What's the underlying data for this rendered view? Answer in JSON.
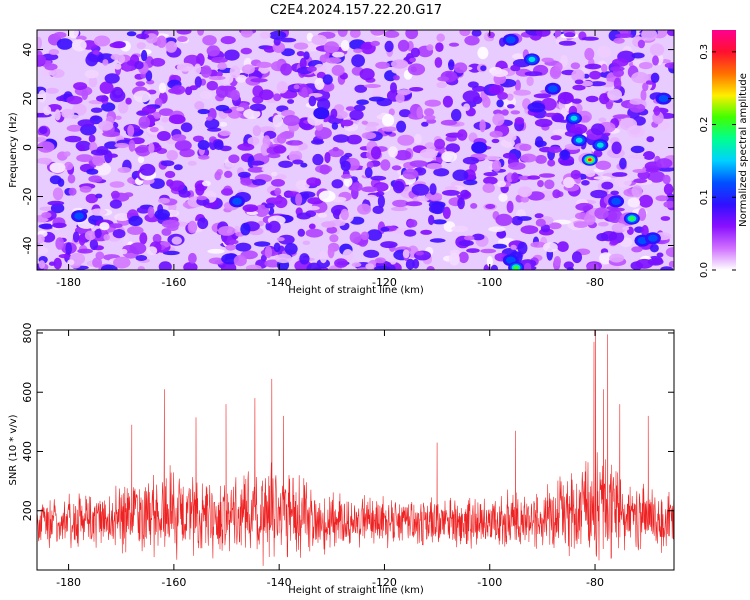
{
  "title": "C2E4.2024.157.22.20.G17",
  "chart_data": [
    {
      "type": "heatmap",
      "xlabel": "Height of straight line (km)",
      "ylabel": "Frequency (Hz)",
      "colorbar_label": "Normalized spectral amplitude",
      "xlim": [
        -186,
        -65
      ],
      "ylim": [
        -50,
        48
      ],
      "xticks": [
        -180,
        -160,
        -140,
        -120,
        -100,
        -80
      ],
      "yticks": [
        -40,
        -20,
        0,
        20,
        40
      ],
      "colorbar_range": [
        0.0,
        0.33
      ],
      "colorbar_ticks": [
        "0.0",
        "0.1",
        "0.2",
        "0.3"
      ],
      "colorscale": [
        "#ffffff",
        "#d070ff",
        "#8a10ff",
        "#3010ff",
        "#0050ff",
        "#00d0ff",
        "#00ff90",
        "#40ff00",
        "#ffee00",
        "#ff7000",
        "#ff1030",
        "#ff0090"
      ],
      "background_level": [
        0.0,
        0.09
      ],
      "peaks": [
        {
          "x": -92,
          "y": 36,
          "value": 0.18
        },
        {
          "x": -96,
          "y": 44,
          "value": 0.13
        },
        {
          "x": -88,
          "y": 24,
          "value": 0.13
        },
        {
          "x": -84,
          "y": 12,
          "value": 0.18
        },
        {
          "x": -83,
          "y": 3,
          "value": 0.19
        },
        {
          "x": -81,
          "y": -5,
          "value": 0.3
        },
        {
          "x": -79,
          "y": 1,
          "value": 0.16
        },
        {
          "x": -76,
          "y": -22,
          "value": 0.13
        },
        {
          "x": -73,
          "y": -29,
          "value": 0.24
        },
        {
          "x": -71,
          "y": -38,
          "value": 0.15
        },
        {
          "x": -69,
          "y": -37,
          "value": 0.12
        },
        {
          "x": -96,
          "y": -46,
          "value": 0.14
        },
        {
          "x": -95,
          "y": -49,
          "value": 0.23
        },
        {
          "x": -67,
          "y": 20,
          "value": 0.12
        },
        {
          "x": -102,
          "y": 0,
          "value": 0.11
        },
        {
          "x": -148,
          "y": -22,
          "value": 0.12
        },
        {
          "x": -178,
          "y": -28,
          "value": 0.12
        },
        {
          "x": -132,
          "y": 14,
          "value": 0.11
        }
      ]
    },
    {
      "type": "line",
      "color": "#ee2222",
      "xlabel": "Height of straight line (km)",
      "ylabel": "SNR (10 * v/v)",
      "xlim": [
        -186,
        -65
      ],
      "ylim": [
        0,
        810
      ],
      "xticks": [
        -180,
        -160,
        -140,
        -120,
        -100,
        -80
      ],
      "yticks": [
        200,
        400,
        600,
        800
      ],
      "envelope": [
        {
          "x": -186,
          "baseline": 160,
          "spread": 90
        },
        {
          "x": -175,
          "baseline": 165,
          "spread": 110
        },
        {
          "x": -170,
          "baseline": 180,
          "spread": 140
        },
        {
          "x": -160,
          "baseline": 195,
          "spread": 170
        },
        {
          "x": -150,
          "baseline": 180,
          "spread": 140
        },
        {
          "x": -141,
          "baseline": 200,
          "spread": 200
        },
        {
          "x": -130,
          "baseline": 165,
          "spread": 110
        },
        {
          "x": -115,
          "baseline": 155,
          "spread": 90
        },
        {
          "x": -100,
          "baseline": 160,
          "spread": 100
        },
        {
          "x": -90,
          "baseline": 175,
          "spread": 120
        },
        {
          "x": -82,
          "baseline": 210,
          "spread": 200
        },
        {
          "x": -78,
          "baseline": 215,
          "spread": 210
        },
        {
          "x": -72,
          "baseline": 180,
          "spread": 140
        },
        {
          "x": -65,
          "baseline": 165,
          "spread": 120
        }
      ],
      "spikes": [
        {
          "x": -161.8,
          "y": 610
        },
        {
          "x": -150.1,
          "y": 560
        },
        {
          "x": -144.6,
          "y": 580
        },
        {
          "x": -141.4,
          "y": 645
        },
        {
          "x": -139.2,
          "y": 520
        },
        {
          "x": -155.8,
          "y": 515
        },
        {
          "x": -168.0,
          "y": 490
        },
        {
          "x": -79.9,
          "y": 810
        },
        {
          "x": -80.2,
          "y": 770
        },
        {
          "x": -77.6,
          "y": 795
        },
        {
          "x": -78.4,
          "y": 610
        },
        {
          "x": -75.3,
          "y": 560
        },
        {
          "x": -69.9,
          "y": 520
        },
        {
          "x": -95.1,
          "y": 470
        },
        {
          "x": -110.0,
          "y": 430
        }
      ]
    }
  ]
}
